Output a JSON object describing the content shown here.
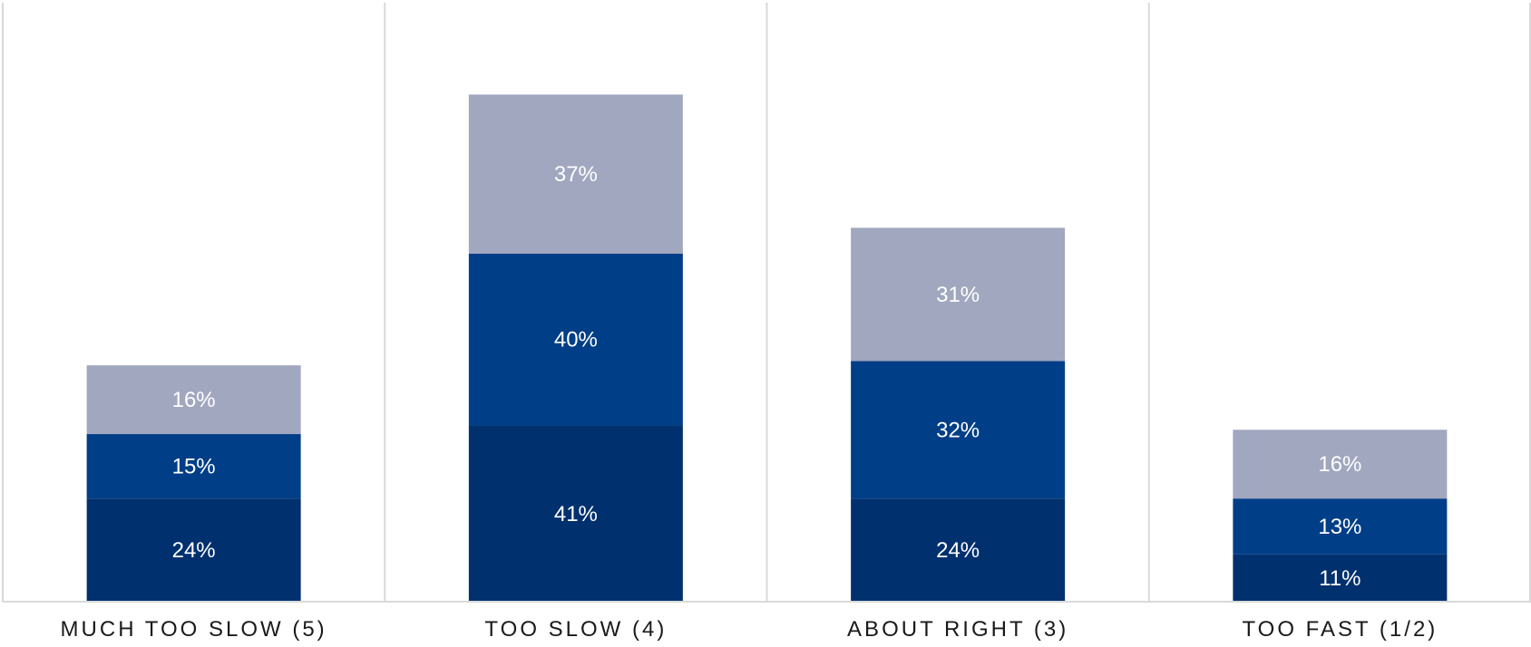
{
  "chart_data": {
    "type": "bar",
    "stacked": true,
    "categories": [
      "MUCH TOO SLOW (5)",
      "TOO SLOW (4)",
      "ABOUT RIGHT (3)",
      "TOO FAST (1/2)"
    ],
    "series": [
      {
        "values": [
          24,
          41,
          24,
          11
        ],
        "labels": [
          "24%",
          "41%",
          "24%",
          "11%"
        ],
        "color": "#00306e"
      },
      {
        "values": [
          15,
          40,
          32,
          13
        ],
        "labels": [
          "15%",
          "40%",
          "32%",
          "13%"
        ],
        "color": "#003e87"
      },
      {
        "values": [
          16,
          37,
          31,
          16
        ],
        "labels": [
          "16%",
          "37%",
          "31%",
          "16%"
        ],
        "color": "#a1a7bf"
      }
    ],
    "ylim": [
      0,
      140
    ],
    "grid": false,
    "legend": "none",
    "separator_color": "#d9d9d9",
    "axis_color": "#d9d9d9"
  }
}
